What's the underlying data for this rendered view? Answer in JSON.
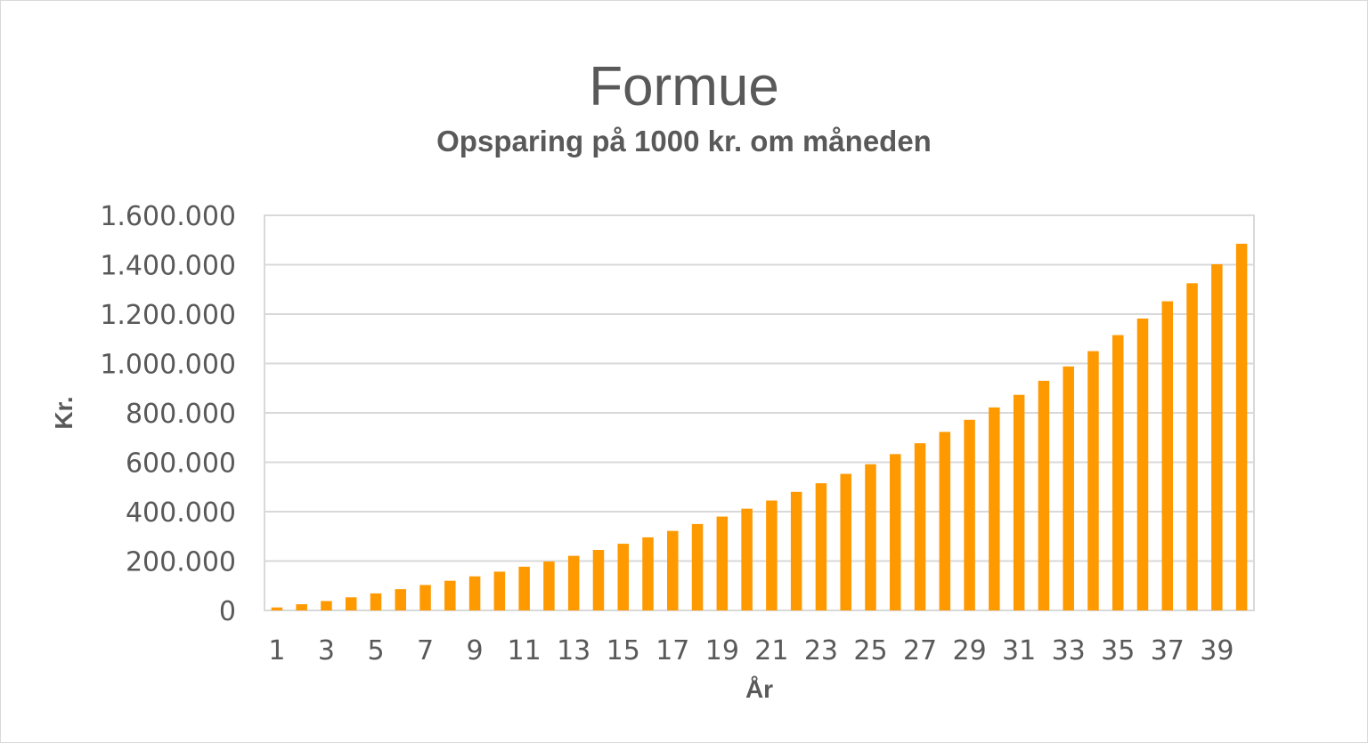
{
  "chart_data": {
    "type": "bar",
    "title": "Formue",
    "subtitle": "Opsparing på 1000 kr. om måneden",
    "xlabel": "År",
    "ylabel": "Kr.",
    "ylim": [
      0,
      1600000
    ],
    "y_ticks": [
      0,
      200000,
      400000,
      600000,
      800000,
      1000000,
      1200000,
      1400000,
      1600000
    ],
    "y_tick_labels": [
      "0",
      "200.000",
      "400.000",
      "600.000",
      "800.000",
      "1.000.000",
      "1.200.000",
      "1.400.000",
      "1.600.000"
    ],
    "categories": [
      1,
      2,
      3,
      4,
      5,
      6,
      7,
      8,
      9,
      10,
      11,
      12,
      13,
      14,
      15,
      16,
      17,
      18,
      19,
      20,
      21,
      22,
      23,
      24,
      25,
      26,
      27,
      28,
      29,
      30,
      31,
      32,
      33,
      34,
      35,
      36,
      37,
      38,
      39,
      40
    ],
    "x_tick_labels": [
      "1",
      "3",
      "5",
      "7",
      "9",
      "11",
      "13",
      "15",
      "17",
      "19",
      "21",
      "23",
      "25",
      "27",
      "29",
      "31",
      "33",
      "35",
      "37",
      "39"
    ],
    "values": [
      12000,
      25000,
      38000,
      53000,
      69000,
      86000,
      103000,
      120000,
      138000,
      157000,
      177000,
      198000,
      221000,
      245000,
      270000,
      296000,
      322000,
      350000,
      380000,
      412000,
      445000,
      480000,
      515000,
      553000,
      592000,
      633000,
      677000,
      723000,
      772000,
      822000,
      873000,
      930000,
      988000,
      1050000,
      1115000,
      1182000,
      1252000,
      1325000,
      1402000,
      1485000
    ],
    "bar_color": "#ff9900",
    "grid": true,
    "legend": "none"
  }
}
